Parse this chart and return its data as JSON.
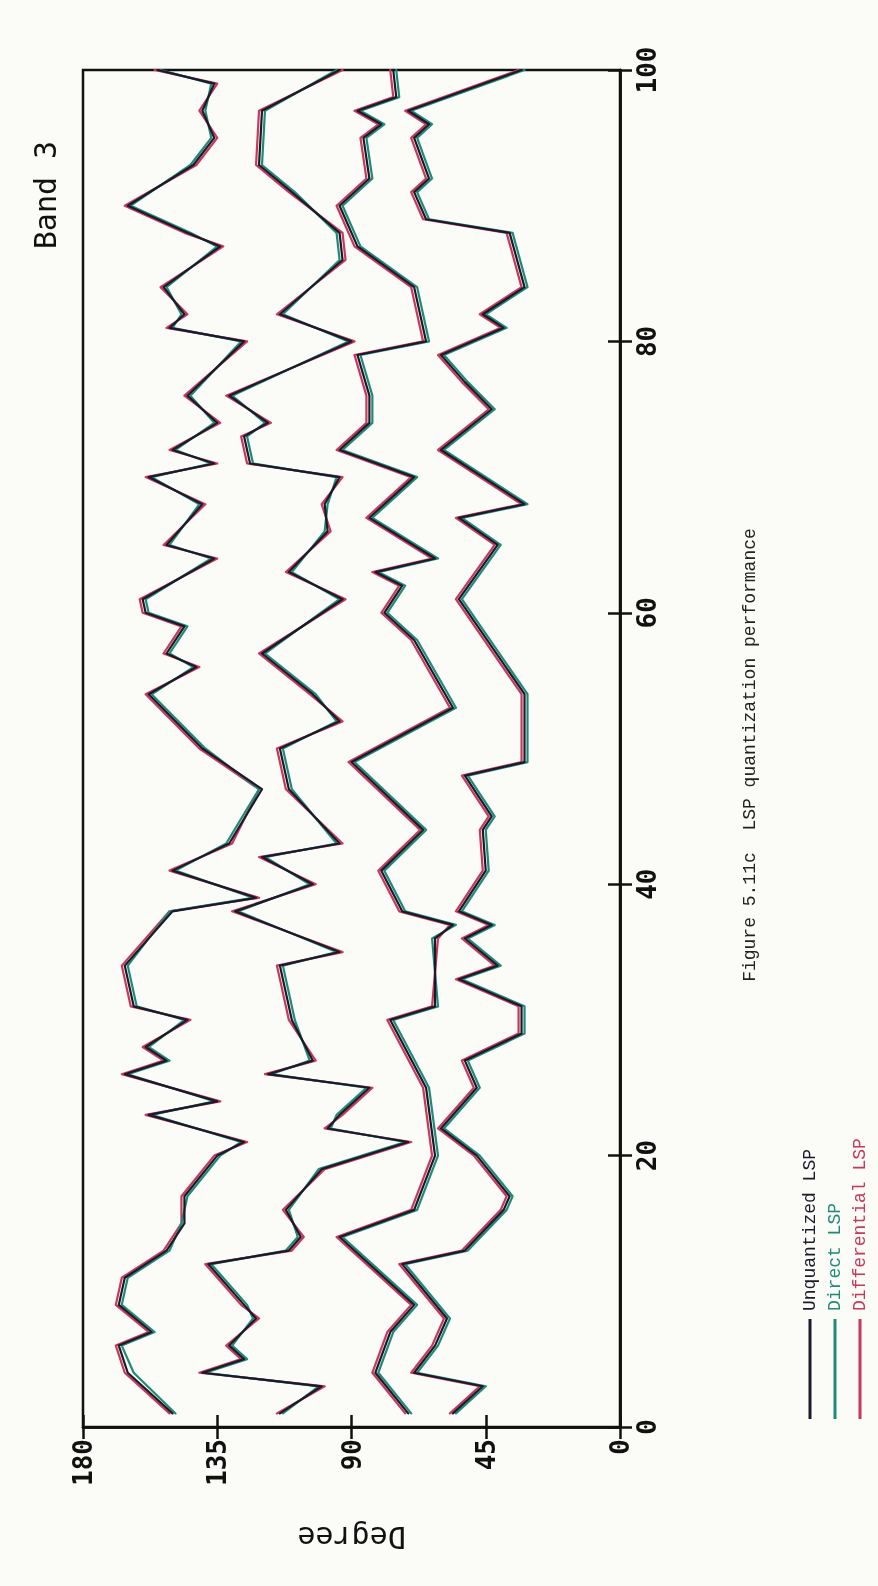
{
  "chart_data": {
    "type": "line",
    "title": "Band 3",
    "xlabel": "Degree",
    "annotations": [
      "Figure 5.11c  LSP quantization performance"
    ],
    "xlim": [
      180,
      0
    ],
    "xticks": [
      180,
      135,
      90,
      45,
      0
    ],
    "ylim": [
      0,
      100
    ],
    "yticks": [
      0,
      20,
      40,
      60,
      80,
      100
    ],
    "grid": false,
    "marker": "none",
    "line_style": "solid",
    "legend": "bottom right",
    "series": [
      {
        "name": "Unquantized LSP",
        "color": "#1c1a2a",
        "values": [
          1,
          4,
          6,
          7,
          9,
          11,
          13,
          15,
          17,
          20,
          21,
          23,
          24,
          26,
          27,
          28,
          30,
          31,
          34,
          38,
          39,
          41,
          43,
          47,
          50,
          54,
          56,
          57,
          59,
          60,
          61,
          64,
          65,
          68,
          70,
          71,
          72,
          74,
          76,
          80,
          81,
          82,
          84,
          87,
          88,
          90,
          93,
          95,
          97,
          99,
          100
        ],
        "x": [
          150,
          165,
          168,
          157,
          168,
          166,
          152,
          146,
          146,
          135,
          126,
          158,
          135,
          166,
          152,
          159,
          145,
          163,
          166,
          150,
          122,
          150,
          131,
          120,
          140,
          158,
          142,
          152,
          146,
          159,
          160,
          136,
          152,
          140,
          158,
          136,
          150,
          135,
          145,
          126,
          151,
          146,
          153,
          134,
          145,
          165,
          143,
          136,
          140,
          136,
          155
        ]
      },
      {
        "color": "#1c1a2a",
        "values": [
          1,
          3,
          4,
          5,
          6,
          8,
          9,
          12,
          13,
          14,
          16,
          19,
          21,
          22,
          23,
          25,
          26,
          27,
          30,
          34,
          35,
          38,
          40,
          42,
          43,
          47,
          50,
          52,
          54,
          57,
          61,
          63,
          66,
          68,
          70,
          71,
          73,
          74,
          76,
          80,
          82,
          86,
          88,
          91,
          93,
          97,
          100
        ],
        "x": [
          114,
          100,
          140,
          126,
          131,
          122,
          126,
          138,
          111,
          107,
          112,
          100,
          71,
          98,
          94,
          84,
          118,
          103,
          110,
          114,
          94,
          129,
          103,
          120,
          94,
          111,
          114,
          94,
          103,
          120,
          93,
          111,
          98,
          99,
          94,
          124,
          126,
          118,
          131,
          90,
          114,
          93,
          94,
          110,
          121,
          120,
          94
        ]
      },
      {
        "color": "#1c1a2a",
        "values": [
          1,
          4,
          7,
          9,
          14,
          16,
          20,
          25,
          30,
          31,
          36,
          37,
          38,
          41,
          44,
          49,
          53,
          58,
          60,
          62,
          63,
          64,
          67,
          70,
          72,
          74,
          76,
          79,
          80,
          84,
          87,
          90,
          92,
          95,
          96,
          97,
          98,
          100
        ],
        "x": [
          71,
          82,
          77,
          69,
          94,
          69,
          62,
          65,
          77,
          62,
          62,
          56,
          73,
          80,
          66,
          90,
          56,
          69,
          79,
          73,
          82,
          62,
          84,
          69,
          94,
          84,
          84,
          88,
          65,
          69,
          88,
          94,
          84,
          86,
          80,
          88,
          75,
          76
        ]
      },
      {
        "color": "#1c1a2a",
        "values": [
          1,
          3,
          4,
          6,
          8,
          12,
          13,
          16,
          17,
          20,
          22,
          25,
          27,
          29,
          31,
          33,
          34,
          36,
          37,
          38,
          41,
          44,
          45,
          48,
          49,
          54,
          61,
          65,
          67,
          68,
          72,
          75,
          77,
          79,
          81,
          82,
          84,
          88,
          89,
          91,
          92,
          95,
          96,
          97,
          100
        ],
        "x": [
          56,
          46,
          69,
          62,
          58,
          73,
          52,
          39,
          37,
          48,
          60,
          48,
          52,
          33,
          33,
          54,
          41,
          52,
          43,
          54,
          45,
          46,
          43,
          52,
          32,
          32,
          54,
          41,
          54,
          32,
          60,
          43,
          52,
          60,
          39,
          46,
          32,
          37,
          65,
          69,
          64,
          69,
          64,
          71,
          33
        ]
      },
      {
        "name": "Direct LSP",
        "color": "#1f8a78",
        "values": [
          1,
          4,
          6,
          7,
          9,
          11,
          13,
          15,
          17,
          20,
          21,
          23,
          24,
          26,
          27,
          28,
          30,
          31,
          34,
          38,
          39,
          41,
          43,
          47,
          50,
          54,
          56,
          57,
          59,
          60,
          61,
          64,
          65,
          68,
          70,
          71,
          72,
          74,
          76,
          80,
          81,
          82,
          84,
          87,
          88,
          90,
          93,
          95,
          97,
          99,
          100
        ],
        "x": [
          149,
          163,
          167,
          156,
          167,
          165,
          151,
          147,
          145,
          134,
          127,
          157,
          136,
          165,
          151,
          158,
          146,
          162,
          165,
          151,
          123,
          149,
          132,
          121,
          139,
          157,
          143,
          151,
          145,
          158,
          159,
          137,
          151,
          141,
          157,
          137,
          149,
          136,
          144,
          127,
          150,
          147,
          152,
          135,
          144,
          164,
          144,
          137,
          139,
          137,
          154
        ]
      },
      {
        "color": "#1f8a78",
        "values": [
          1,
          3,
          4,
          5,
          6,
          8,
          9,
          12,
          13,
          14,
          16,
          19,
          21,
          22,
          23,
          25,
          26,
          27,
          30,
          34,
          35,
          38,
          40,
          42,
          43,
          47,
          50,
          52,
          54,
          57,
          61,
          63,
          66,
          68,
          70,
          71,
          73,
          74,
          76,
          80,
          82,
          86,
          88,
          91,
          93,
          97,
          100
        ],
        "x": [
          113,
          101,
          139,
          125,
          130,
          123,
          125,
          137,
          112,
          108,
          111,
          101,
          72,
          97,
          95,
          85,
          117,
          104,
          109,
          113,
          95,
          128,
          104,
          119,
          95,
          110,
          113,
          95,
          102,
          119,
          94,
          110,
          99,
          98,
          95,
          123,
          125,
          119,
          130,
          91,
          113,
          94,
          95,
          109,
          120,
          119,
          95
        ]
      },
      {
        "color": "#1f8a78",
        "values": [
          1,
          4,
          7,
          9,
          14,
          16,
          20,
          25,
          30,
          31,
          36,
          37,
          38,
          41,
          44,
          49,
          53,
          58,
          60,
          62,
          63,
          64,
          67,
          70,
          72,
          74,
          76,
          79,
          80,
          84,
          87,
          90,
          92,
          95,
          96,
          97,
          98,
          100
        ],
        "x": [
          70,
          81,
          76,
          68,
          93,
          68,
          61,
          64,
          76,
          61,
          63,
          55,
          72,
          79,
          65,
          89,
          55,
          68,
          78,
          72,
          81,
          61,
          83,
          68,
          93,
          83,
          83,
          87,
          64,
          68,
          87,
          93,
          83,
          85,
          79,
          87,
          74,
          75
        ]
      },
      {
        "color": "#1f8a78",
        "values": [
          1,
          3,
          4,
          6,
          8,
          12,
          13,
          16,
          17,
          20,
          22,
          25,
          27,
          29,
          31,
          33,
          34,
          36,
          37,
          38,
          41,
          44,
          45,
          48,
          49,
          54,
          61,
          65,
          67,
          68,
          72,
          75,
          77,
          79,
          81,
          82,
          84,
          88,
          89,
          91,
          92,
          95,
          96,
          97,
          100
        ],
        "x": [
          55,
          45,
          68,
          61,
          57,
          72,
          51,
          38,
          36,
          47,
          59,
          47,
          51,
          32,
          32,
          53,
          40,
          51,
          42,
          53,
          44,
          45,
          42,
          51,
          31,
          31,
          53,
          40,
          53,
          31,
          59,
          42,
          51,
          59,
          38,
          45,
          31,
          36,
          64,
          68,
          63,
          68,
          63,
          70,
          32
        ]
      },
      {
        "name": "Differential LSP",
        "color": "#c8385a",
        "values": [
          1,
          4,
          6,
          7,
          9,
          11,
          13,
          15,
          17,
          20,
          21,
          23,
          24,
          26,
          27,
          28,
          30,
          31,
          34,
          38,
          39,
          41,
          43,
          47,
          50,
          54,
          56,
          57,
          59,
          60,
          61,
          64,
          65,
          68,
          70,
          71,
          72,
          74,
          76,
          80,
          81,
          82,
          84,
          87,
          88,
          90,
          93,
          95,
          97,
          99,
          100
        ],
        "x": [
          151,
          166,
          169,
          158,
          169,
          167,
          153,
          147,
          147,
          136,
          125,
          159,
          134,
          167,
          153,
          160,
          144,
          164,
          167,
          151,
          121,
          151,
          130,
          121,
          141,
          159,
          141,
          153,
          147,
          160,
          161,
          135,
          153,
          139,
          159,
          135,
          151,
          134,
          146,
          125,
          152,
          145,
          154,
          133,
          146,
          166,
          142,
          135,
          141,
          135,
          156
        ]
      },
      {
        "color": "#c8385a",
        "values": [
          1,
          3,
          4,
          5,
          6,
          8,
          9,
          12,
          13,
          14,
          16,
          19,
          21,
          22,
          23,
          25,
          26,
          27,
          30,
          34,
          35,
          38,
          40,
          42,
          43,
          47,
          50,
          52,
          54,
          57,
          61,
          63,
          66,
          68,
          70,
          71,
          73,
          74,
          76,
          80,
          82,
          86,
          88,
          91,
          93,
          97,
          100
        ],
        "x": [
          115,
          99,
          141,
          127,
          132,
          121,
          127,
          139,
          110,
          106,
          113,
          99,
          70,
          99,
          93,
          83,
          119,
          102,
          111,
          115,
          93,
          130,
          102,
          121,
          93,
          112,
          115,
          93,
          104,
          121,
          92,
          112,
          97,
          100,
          93,
          125,
          127,
          117,
          132,
          89,
          115,
          92,
          93,
          111,
          122,
          121,
          93
        ]
      },
      {
        "color": "#c8385a",
        "values": [
          1,
          4,
          7,
          9,
          14,
          16,
          20,
          25,
          30,
          31,
          36,
          37,
          38,
          41,
          44,
          49,
          53,
          58,
          60,
          62,
          63,
          64,
          67,
          70,
          72,
          74,
          76,
          79,
          80,
          84,
          87,
          90,
          92,
          95,
          96,
          97,
          98,
          100
        ],
        "x": [
          72,
          83,
          78,
          70,
          95,
          70,
          63,
          66,
          78,
          63,
          61,
          57,
          74,
          81,
          67,
          91,
          57,
          70,
          80,
          74,
          83,
          63,
          85,
          70,
          95,
          85,
          85,
          89,
          66,
          70,
          89,
          95,
          85,
          87,
          81,
          89,
          76,
          77
        ]
      },
      {
        "color": "#c8385a",
        "values": [
          1,
          3,
          4,
          6,
          8,
          12,
          13,
          16,
          17,
          20,
          22,
          25,
          27,
          29,
          31,
          33,
          34,
          36,
          37,
          38,
          41,
          44,
          45,
          48,
          49,
          54,
          61,
          65,
          67,
          68,
          72,
          75,
          77,
          79,
          81,
          82,
          84,
          88,
          89,
          91,
          92,
          95,
          96,
          97,
          100
        ],
        "x": [
          57,
          47,
          70,
          63,
          59,
          74,
          53,
          40,
          38,
          49,
          61,
          49,
          53,
          34,
          34,
          55,
          42,
          53,
          44,
          55,
          46,
          47,
          44,
          53,
          33,
          33,
          55,
          42,
          55,
          33,
          61,
          44,
          53,
          61,
          40,
          47,
          33,
          38,
          66,
          70,
          65,
          70,
          65,
          72,
          34
        ]
      }
    ]
  }
}
